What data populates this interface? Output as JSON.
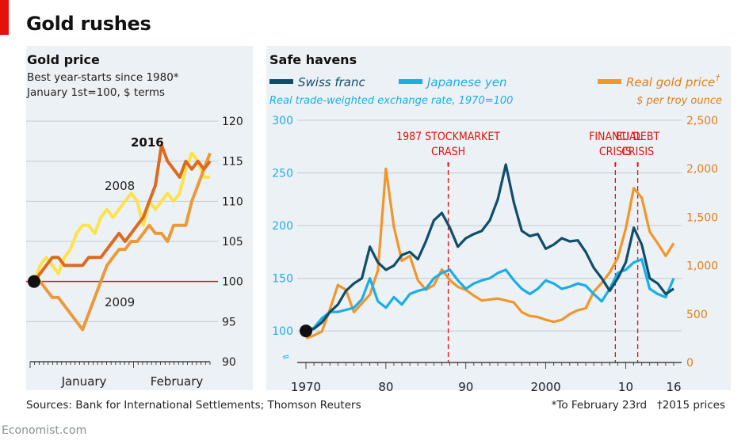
{
  "header": {
    "title": "Gold rushes"
  },
  "footer": {
    "sources": "Sources: Bank for International Settlements; Thomson Reuters",
    "note1": "*To February 23rd",
    "note2": "†2015 prices",
    "brand": "Economist.com"
  },
  "colors": {
    "accent_red": "#e3120b",
    "y2016": "#dc6a1f",
    "y2008": "#fde34a",
    "y2009": "#eb9a3a",
    "swiss": "#0f4e6b",
    "yen": "#1aaee6",
    "gold": "#f0962a",
    "annotation": "#e3120b"
  },
  "chart_data": [
    {
      "type": "line",
      "title": "Gold price",
      "subtitle_1": "Best year-starts since 1980*",
      "subtitle_2": "January 1st=100, $ terms",
      "x_labels": [
        "January",
        "February"
      ],
      "ylim": [
        90,
        120
      ],
      "yticks": [
        "120",
        "115",
        "110",
        "105",
        "100",
        "95",
        "90"
      ],
      "reference_line": 100,
      "grid": true,
      "series": [
        {
          "name": "2016",
          "values": [
            100,
            101,
            102,
            103,
            103,
            102,
            102,
            102,
            102,
            103,
            103,
            103,
            104,
            105,
            106,
            105,
            106,
            107,
            108,
            110,
            112,
            117,
            115,
            114,
            113,
            115,
            114,
            115,
            114,
            115
          ]
        },
        {
          "name": "2008",
          "values": [
            100,
            102,
            103,
            102,
            101,
            103,
            104,
            106,
            107,
            107,
            106,
            108,
            109,
            108,
            109,
            110,
            111,
            110,
            107,
            110,
            109,
            110,
            111,
            110,
            111,
            114,
            116,
            115,
            113,
            113
          ]
        },
        {
          "name": "2009",
          "values": [
            100,
            100,
            99,
            98,
            98,
            97,
            96,
            95,
            94,
            96,
            98,
            100,
            102,
            103,
            104,
            104,
            105,
            105,
            106,
            107,
            106,
            106,
            105,
            107,
            107,
            107,
            110,
            112,
            114,
            116
          ]
        }
      ]
    },
    {
      "type": "line",
      "title": "Safe havens",
      "subtitle": "Real trade-weighted exchange rate, 1970=100",
      "secondary_axis_unit": "$ per troy ounce",
      "xlim": [
        1970,
        2016
      ],
      "x_labels": [
        "1970",
        "80",
        "90",
        "2000",
        "10",
        "16"
      ],
      "ylim_left": [
        70,
        300
      ],
      "yticks_left": [
        "300",
        "250",
        "200",
        "150",
        "100"
      ],
      "ylim_right": [
        0,
        2500
      ],
      "yticks_right": [
        "2,500",
        "2,000",
        "1,500",
        "1,000",
        "500",
        "0"
      ],
      "annotations": [
        {
          "x": 1987.8,
          "label_1": "1987 STOCKMARKET",
          "label_2": "CRASH"
        },
        {
          "x": 2008.7,
          "label_1": "FINANCIAL",
          "label_2": "CRISIS"
        },
        {
          "x": 2011.5,
          "label_1": "EU DEBT",
          "label_2": "CRISIS"
        }
      ],
      "series": [
        {
          "name": "Swiss franc",
          "axis": "left",
          "x": [
            1970,
            1971,
            1972,
            1973,
            1974,
            1975,
            1976,
            1977,
            1978,
            1979,
            1980,
            1981,
            1982,
            1983,
            1984,
            1985,
            1986,
            1987,
            1988,
            1989,
            1990,
            1991,
            1992,
            1993,
            1994,
            1995,
            1996,
            1997,
            1998,
            1999,
            2000,
            2001,
            2002,
            2003,
            2004,
            2005,
            2006,
            2007,
            2008,
            2009,
            2010,
            2011,
            2012,
            2013,
            2014,
            2015,
            2016
          ],
          "values": [
            100,
            102,
            108,
            118,
            125,
            138,
            145,
            150,
            180,
            165,
            158,
            162,
            172,
            175,
            168,
            185,
            205,
            212,
            198,
            180,
            188,
            192,
            195,
            205,
            225,
            258,
            222,
            195,
            190,
            192,
            178,
            182,
            188,
            185,
            186,
            175,
            160,
            150,
            138,
            150,
            165,
            198,
            182,
            150,
            145,
            135,
            140
          ]
        },
        {
          "name": "Japanese yen",
          "axis": "left",
          "x": [
            1970,
            1971,
            1972,
            1973,
            1974,
            1975,
            1976,
            1977,
            1978,
            1979,
            1980,
            1981,
            1982,
            1983,
            1984,
            1985,
            1986,
            1987,
            1988,
            1989,
            1990,
            1991,
            1992,
            1993,
            1994,
            1995,
            1996,
            1997,
            1998,
            1999,
            2000,
            2001,
            2002,
            2003,
            2004,
            2005,
            2006,
            2007,
            2008,
            2009,
            2010,
            2011,
            2012,
            2013,
            2014,
            2015,
            2016
          ],
          "values": [
            100,
            103,
            112,
            118,
            118,
            120,
            122,
            130,
            150,
            128,
            122,
            132,
            125,
            135,
            138,
            140,
            150,
            155,
            158,
            148,
            140,
            145,
            148,
            150,
            155,
            158,
            148,
            140,
            135,
            140,
            148,
            145,
            140,
            142,
            145,
            143,
            135,
            128,
            140,
            155,
            158,
            165,
            168,
            140,
            135,
            132,
            150
          ]
        },
        {
          "name": "Real gold price",
          "axis": "right",
          "x": [
            1970,
            1971,
            1972,
            1973,
            1974,
            1975,
            1976,
            1977,
            1978,
            1979,
            1980,
            1981,
            1982,
            1983,
            1984,
            1985,
            1986,
            1987,
            1988,
            1989,
            1990,
            1991,
            1992,
            1993,
            1994,
            1995,
            1996,
            1997,
            1998,
            1999,
            2000,
            2001,
            2002,
            2003,
            2004,
            2005,
            2006,
            2007,
            2008,
            2009,
            2010,
            2011,
            2012,
            2013,
            2014,
            2015,
            2016
          ],
          "values": [
            250,
            280,
            320,
            550,
            800,
            750,
            520,
            610,
            700,
            950,
            2000,
            1400,
            1050,
            1100,
            850,
            750,
            800,
            960,
            850,
            780,
            750,
            690,
            640,
            650,
            660,
            640,
            620,
            520,
            480,
            470,
            440,
            420,
            440,
            500,
            540,
            560,
            730,
            820,
            930,
            1080,
            1380,
            1800,
            1700,
            1350,
            1230,
            1100,
            1230
          ]
        }
      ]
    }
  ]
}
